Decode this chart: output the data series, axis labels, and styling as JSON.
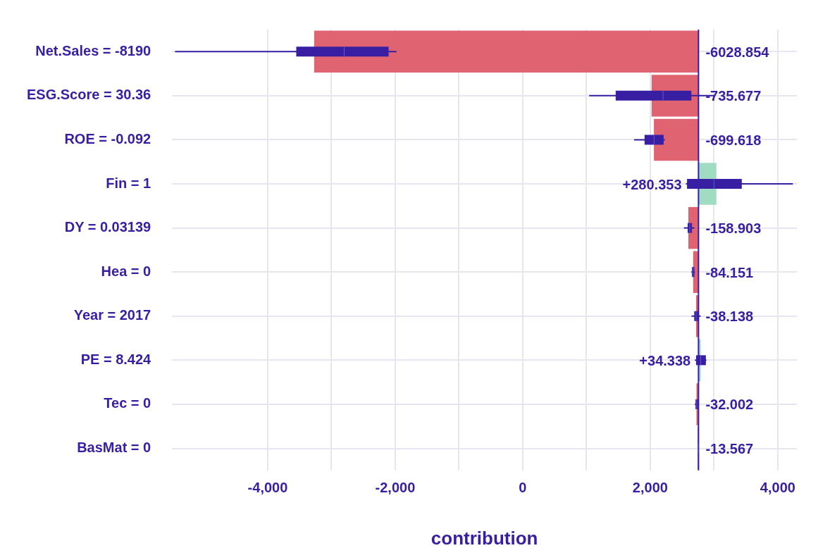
{
  "chart_data": {
    "type": "bar",
    "orientation": "horizontal",
    "xlabel": "contribution",
    "categories": [
      "Net.Sales = -8190",
      "ESG.Score = 30.36",
      "ROE = -0.092",
      "Fin = 1",
      "DY = 0.03139",
      "Hea = 0",
      "Year = 2017",
      "PE = 8.424",
      "Tec = 0",
      "BasMat = 0"
    ],
    "series": [
      {
        "values": [
          -6028.854,
          -735.677,
          -699.618,
          280.353,
          -158.903,
          -84.151,
          -38.138,
          34.338,
          -32.002,
          -13.567
        ],
        "base": [
          2757,
          2757,
          2757,
          2757,
          2757,
          2757,
          2757,
          2757,
          2757,
          2757
        ],
        "colors": [
          "#df6371",
          "#df6371",
          "#df6371",
          "#9fdcc2",
          "#df6371",
          "#df6371",
          "#df6371",
          "#9fdcc2",
          "#df6371",
          "#df6371"
        ],
        "value_labels": [
          "-6028.854",
          "-735.677",
          "-699.618",
          "+280.353",
          "-158.903",
          "-84.151",
          "-38.138",
          "+34.338",
          "-32.002",
          "-13.567"
        ]
      },
      {
        "type": "box",
        "color": "#371ea3",
        "boxes": [
          {
            "low": -5454,
            "q1": -3552,
            "median": -2800,
            "q3": -2104,
            "high": -1979
          },
          {
            "low": 1042,
            "q1": 1458,
            "median": 2200,
            "q3": 2645,
            "high": 3010
          },
          {
            "low": 1747,
            "q1": 1911,
            "median": 2060,
            "q3": 2210,
            "high": 2230
          },
          {
            "low": 2560,
            "q1": 2577,
            "median": 3000,
            "q3": 3436,
            "high": 4237
          },
          {
            "low": 2529,
            "q1": 2587,
            "median": 2620,
            "q3": 2654,
            "high": 2693
          },
          {
            "low": 2645,
            "q1": 2654,
            "median": 2670,
            "q3": 2693,
            "high": 2700
          },
          {
            "low": 2648,
            "q1": 2690,
            "median": 2720,
            "q3": 2760,
            "high": 2790
          },
          {
            "low": 2700,
            "q1": 2719,
            "median": 2790,
            "q3": 2873,
            "high": 2880
          },
          {
            "low": 2700,
            "q1": 2710,
            "median": 2730,
            "q3": 2751,
            "high": 2757
          },
          {
            "low": 2745,
            "q1": 2748,
            "median": 2752,
            "q3": 2756,
            "high": 2760
          }
        ]
      }
    ],
    "xlim": [
      -5500,
      4300
    ],
    "xticks": [
      {
        "value": -4000,
        "label": "-4,000"
      },
      {
        "value": -3000,
        "label": null
      },
      {
        "value": -2000,
        "label": "-2,000"
      },
      {
        "value": -1000,
        "label": null
      },
      {
        "value": 0,
        "label": "0"
      },
      {
        "value": 1000,
        "label": null
      },
      {
        "value": 2000,
        "label": "2,000"
      },
      {
        "value": 3000,
        "label": null
      },
      {
        "value": 4000,
        "label": "4,000"
      }
    ],
    "ref_lines": [
      {
        "axis": "x",
        "value": 2757,
        "color": "#371ea3"
      }
    ],
    "grid": true,
    "legend": false
  }
}
